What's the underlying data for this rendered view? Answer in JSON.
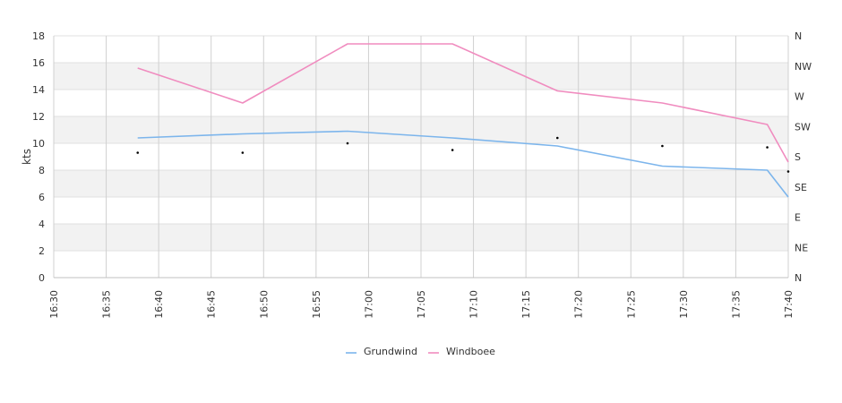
{
  "chart_data": {
    "type": "line",
    "ylabel": "kts",
    "ylim": [
      0,
      18
    ],
    "y_ticks": [
      "0",
      "2",
      "4",
      "6",
      "8",
      "10",
      "12",
      "14",
      "16",
      "18"
    ],
    "xlim": [
      "16:30",
      "17:40"
    ],
    "x_ticks": [
      "16:30",
      "16:35",
      "16:40",
      "16:45",
      "16:50",
      "16:55",
      "17:00",
      "17:05",
      "17:10",
      "17:15",
      "17:20",
      "17:25",
      "17:30",
      "17:35",
      "17:40"
    ],
    "right_axis_ticks": [
      "N",
      "NE",
      "E",
      "SE",
      "S",
      "SW",
      "W",
      "NW",
      "N"
    ],
    "grid": true,
    "legend_position": "bottom",
    "series": [
      {
        "name": "Grundwind",
        "color": "#7cb5ec",
        "x": [
          "16:38",
          "16:48",
          "16:58",
          "17:08",
          "17:18",
          "17:28",
          "17:38",
          "17:40"
        ],
        "values": [
          10.4,
          10.7,
          10.9,
          10.4,
          9.8,
          8.3,
          8.0,
          6.0
        ]
      },
      {
        "name": "Windboee",
        "color": "#f08cbf",
        "x": [
          "16:38",
          "16:48",
          "16:58",
          "17:08",
          "17:18",
          "17:28",
          "17:38",
          "17:40"
        ],
        "values": [
          15.6,
          13.0,
          17.4,
          17.4,
          13.9,
          13.0,
          11.4,
          8.6
        ]
      },
      {
        "name": "direction",
        "type": "scatter",
        "color": "#000000",
        "x": [
          "16:38",
          "16:48",
          "16:58",
          "17:08",
          "17:18",
          "17:28",
          "17:38",
          "17:40"
        ],
        "values": [
          9.3,
          9.3,
          10.0,
          9.5,
          10.4,
          9.8,
          9.7,
          7.9
        ]
      }
    ]
  }
}
